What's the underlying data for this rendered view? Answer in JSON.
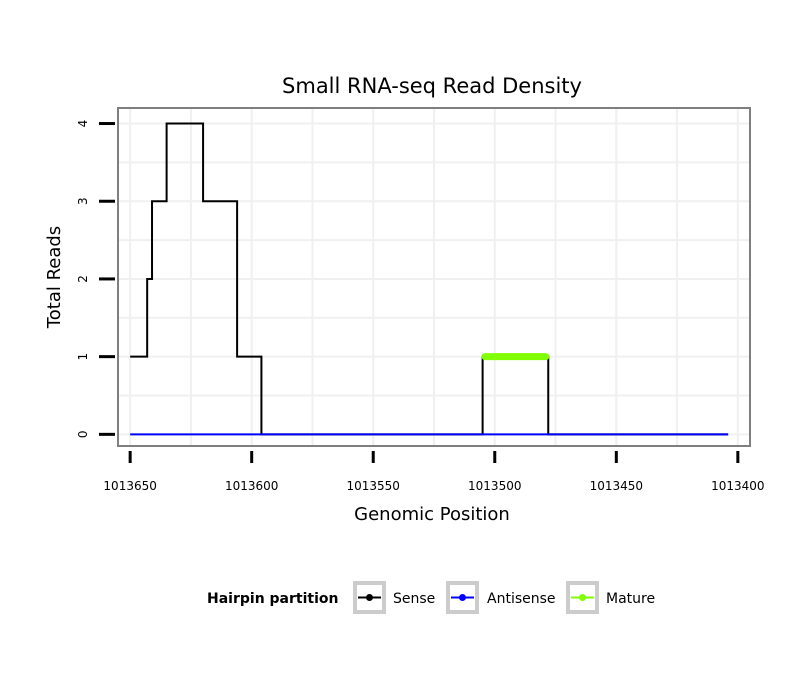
{
  "chart_data": {
    "type": "line",
    "title": "Small RNA-seq Read Density",
    "xlabel": "Genomic Position",
    "ylabel": "Total Reads",
    "x_reversed": true,
    "xlim": [
      1013655,
      1013395
    ],
    "ylim": [
      -0.15,
      4.2
    ],
    "x_ticks": [
      1013650,
      1013600,
      1013550,
      1013500,
      1013450,
      1013400
    ],
    "x_tick_labels": [
      "1013650",
      "1013600",
      "1013550",
      "1013500",
      "1013450",
      "1013400"
    ],
    "y_ticks": [
      0,
      1,
      2,
      3,
      4
    ],
    "y_tick_labels": [
      "0",
      "1",
      "2",
      "3",
      "4"
    ],
    "grid": true,
    "legend": {
      "title": "Hairpin partition",
      "position": "bottom",
      "entries": [
        "Sense",
        "Antisense",
        "Mature"
      ]
    },
    "series": [
      {
        "name": "Sense",
        "color": "#000000",
        "x": [
          1013650,
          1013643,
          1013643,
          1013642,
          1013642,
          1013641,
          1013641,
          1013635,
          1013635,
          1013628,
          1013628,
          1013620,
          1013620,
          1013613,
          1013613,
          1013606,
          1013606,
          1013605,
          1013605,
          1013596,
          1013596,
          1013505,
          1013505,
          1013478,
          1013478,
          1013404
        ],
        "y": [
          1,
          1,
          2,
          2,
          2,
          2,
          3,
          3,
          4,
          4,
          4,
          4,
          3,
          3,
          3,
          3,
          1,
          1,
          1,
          1,
          0,
          0,
          1,
          1,
          0,
          0
        ]
      },
      {
        "name": "Antisense",
        "color": "#0000ff",
        "x": [
          1013650,
          1013404
        ],
        "y": [
          0,
          0
        ]
      },
      {
        "name": "Mature",
        "color": "#7fff00",
        "x": [
          1013504,
          1013479
        ],
        "y": [
          1,
          1
        ]
      }
    ]
  }
}
